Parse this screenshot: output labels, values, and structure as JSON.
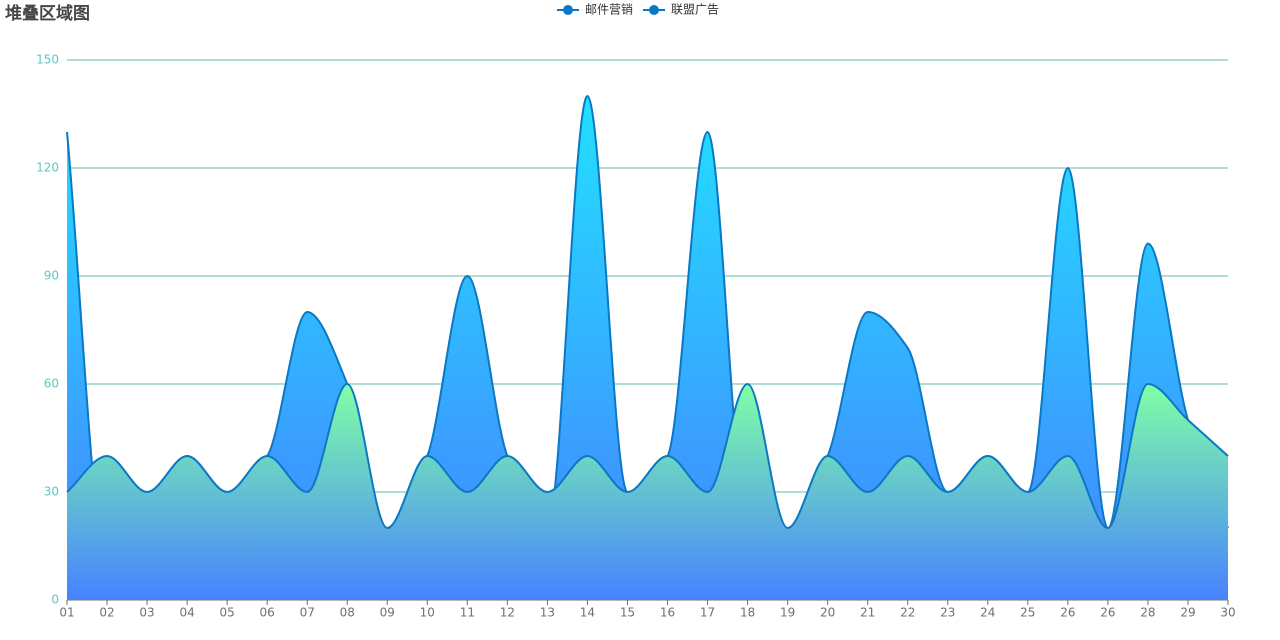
{
  "chart_data": {
    "type": "area",
    "title": "堆叠区域图",
    "categories": [
      "01",
      "02",
      "03",
      "04",
      "05",
      "06",
      "07",
      "08",
      "09",
      "10",
      "11",
      "12",
      "13",
      "14",
      "15",
      "16",
      "17",
      "18",
      "19",
      "20",
      "21",
      "22",
      "23",
      "24",
      "25",
      "26",
      "26",
      "28",
      "29",
      "30"
    ],
    "series": [
      {
        "name": "邮件营销",
        "color": "#0b78c4",
        "area_gradient": [
          "#80ffa5",
          "#4682ff"
        ],
        "values": [
          30,
          40,
          30,
          40,
          30,
          40,
          30,
          60,
          20,
          40,
          30,
          40,
          30,
          40,
          30,
          40,
          30,
          60,
          20,
          40,
          30,
          40,
          30,
          40,
          30,
          40,
          20,
          60,
          50,
          40
        ]
      },
      {
        "name": "联盟广告",
        "color": "#0b78c4",
        "area_gradient": [
          "#22e0ff",
          "#4582ff"
        ],
        "values": [
          130,
          10,
          20,
          40,
          30,
          40,
          80,
          60,
          20,
          40,
          90,
          40,
          20,
          140,
          30,
          40,
          130,
          20,
          20,
          40,
          80,
          70,
          30,
          40,
          30,
          120,
          20,
          99,
          50,
          20
        ]
      }
    ],
    "ylim": [
      0,
      150
    ],
    "yticks": [
      0,
      30,
      60,
      90,
      120,
      150
    ],
    "grid": true
  }
}
